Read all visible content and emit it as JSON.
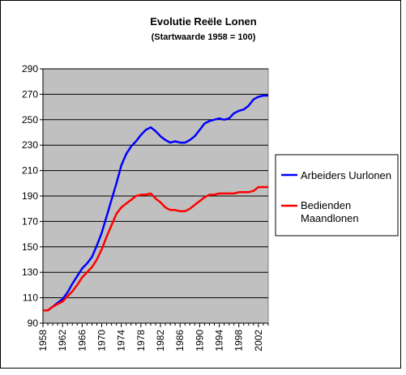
{
  "chart_data": {
    "type": "line",
    "title": "Evolutie Reële Lonen",
    "subtitle": "(Startwaarde 1958 = 100)",
    "xlabel": "",
    "ylabel": "",
    "xlim": [
      1958,
      2004
    ],
    "ylim": [
      90,
      290
    ],
    "y_ticks": [
      90,
      110,
      130,
      150,
      170,
      190,
      210,
      230,
      250,
      270,
      290
    ],
    "x_ticks": [
      1958,
      1962,
      1966,
      1970,
      1974,
      1978,
      1982,
      1986,
      1990,
      1994,
      1998,
      2002
    ],
    "grid": "horizontal",
    "plot_background": "#c0c0c0",
    "legend_position": "right",
    "series": [
      {
        "name": "Arbeiders Uurlonen",
        "color": "#0000ff",
        "x": [
          1958,
          1959,
          1960,
          1961,
          1962,
          1963,
          1964,
          1965,
          1966,
          1967,
          1968,
          1969,
          1970,
          1971,
          1972,
          1973,
          1974,
          1975,
          1976,
          1977,
          1978,
          1979,
          1980,
          1981,
          1982,
          1983,
          1984,
          1985,
          1986,
          1987,
          1988,
          1989,
          1990,
          1991,
          1992,
          1993,
          1994,
          1995,
          1996,
          1997,
          1998,
          1999,
          2000,
          2001,
          2002,
          2003,
          2004
        ],
        "values": [
          100,
          100,
          103,
          106,
          109,
          114,
          121,
          127,
          133,
          137,
          142,
          151,
          161,
          174,
          187,
          200,
          214,
          223,
          229,
          233,
          238,
          242,
          244,
          241,
          237,
          234,
          232,
          233,
          232,
          232,
          234,
          237,
          242,
          247,
          249,
          250,
          251,
          250,
          251,
          255,
          257,
          258,
          261,
          266,
          268,
          269,
          269
        ]
      },
      {
        "name": "Bedienden Maandlonen",
        "color": "#ff0000",
        "x": [
          1958,
          1959,
          1960,
          1961,
          1962,
          1963,
          1964,
          1965,
          1966,
          1967,
          1968,
          1969,
          1970,
          1971,
          1972,
          1973,
          1974,
          1975,
          1976,
          1977,
          1978,
          1979,
          1980,
          1981,
          1982,
          1983,
          1984,
          1985,
          1986,
          1987,
          1988,
          1989,
          1990,
          1991,
          1992,
          1993,
          1994,
          1995,
          1996,
          1997,
          1998,
          1999,
          2000,
          2001,
          2002,
          2003,
          2004
        ],
        "values": [
          100,
          100,
          103,
          105,
          107,
          111,
          115,
          120,
          126,
          130,
          134,
          140,
          148,
          158,
          167,
          176,
          181,
          184,
          187,
          190,
          191,
          191,
          192,
          188,
          185,
          181,
          179,
          179,
          178,
          178,
          180,
          183,
          186,
          189,
          191,
          191,
          192,
          192,
          192,
          192,
          193,
          193,
          193,
          194,
          197,
          197,
          197
        ]
      }
    ]
  }
}
